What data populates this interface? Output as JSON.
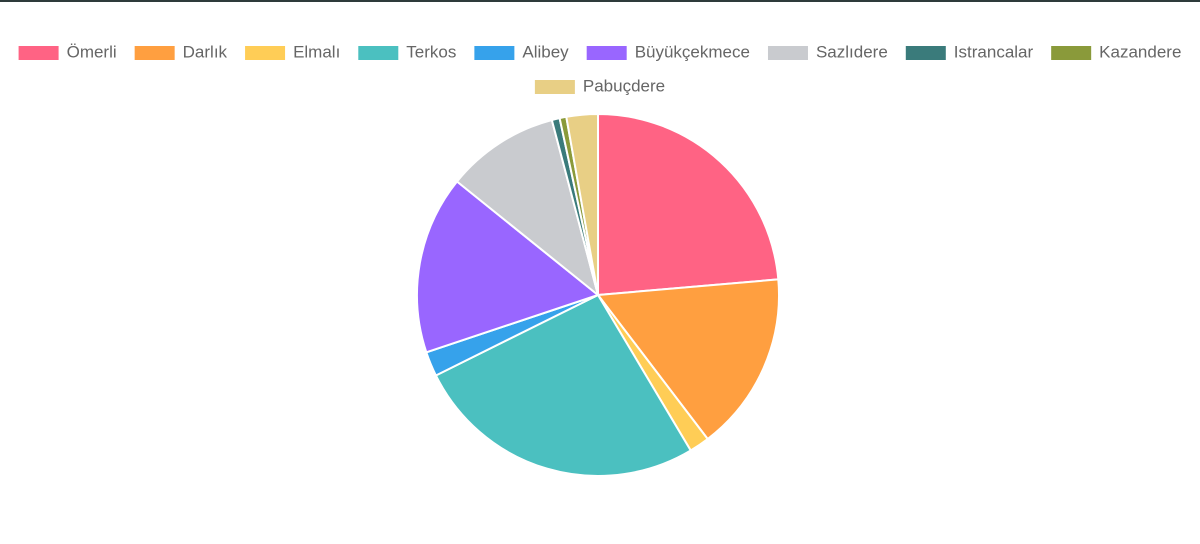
{
  "chart_data": {
    "type": "pie",
    "categories": [
      "Ömerli",
      "Darlık",
      "Elmalı",
      "Terkos",
      "Alibey",
      "Büyükçekmece",
      "Sazlıdere",
      "Istrancalar",
      "Kazandere",
      "Pabuçdere"
    ],
    "values": [
      23.6,
      16,
      1.8,
      26.2,
      2.2,
      15.9,
      10.1,
      0.7,
      0.6,
      2.8
    ],
    "colors": [
      "#ff6384",
      "#ff9f40",
      "#ffcd56",
      "#4bc0c0",
      "#36a2eb",
      "#9966ff",
      "#c9cbcf",
      "#3a7b7b",
      "#8a9a3a",
      "#e8cf85"
    ],
    "legend": "top"
  }
}
